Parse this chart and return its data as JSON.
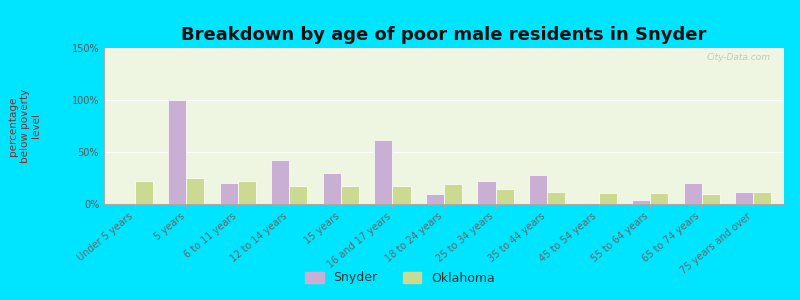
{
  "title": "Breakdown by age of poor male residents in Snyder",
  "ylabel": "percentage\nbelow poverty\nlevel",
  "categories": [
    "Under 5 years",
    "5 years",
    "6 to 11 years",
    "12 to 14 years",
    "15 years",
    "16 and 17 years",
    "18 to 24 years",
    "25 to 34 years",
    "35 to 44 years",
    "45 to 54 years",
    "55 to 64 years",
    "65 to 74 years",
    "75 years and over"
  ],
  "snyder_values": [
    0,
    100,
    20,
    42,
    30,
    62,
    10,
    22,
    28,
    0,
    4,
    20,
    12
  ],
  "oklahoma_values": [
    22,
    25,
    22,
    17,
    17,
    17,
    19,
    14,
    12,
    11,
    11,
    10,
    12
  ],
  "snyder_color": "#c9afd4",
  "oklahoma_color": "#ccd990",
  "plot_bg": "#eef5e0",
  "outer_bg": "#00e5ff",
  "ylim": [
    0,
    150
  ],
  "yticks": [
    0,
    50,
    100,
    150
  ],
  "ytick_labels": [
    "0%",
    "50%",
    "100%",
    "150%"
  ],
  "bar_width": 0.35,
  "legend_snyder": "Snyder",
  "legend_oklahoma": "Oklahoma",
  "title_fontsize": 13,
  "axis_label_fontsize": 7.5,
  "tick_fontsize": 7,
  "watermark": "City-Data.com"
}
